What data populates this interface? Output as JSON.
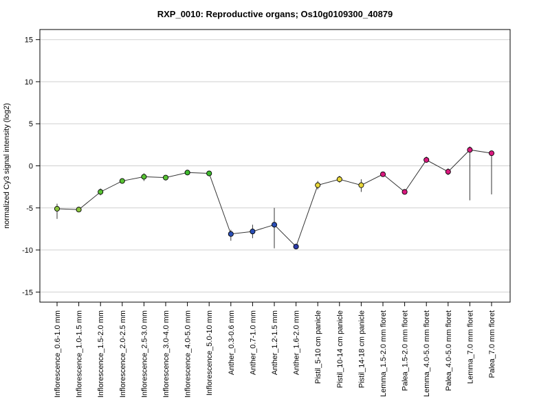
{
  "chart_data": {
    "type": "line",
    "title": "RXP_0010: Reproductive organs; Os10g0109300_40879",
    "ylabel": "normalized Cy3 signal intensity (log2)",
    "xlabel": "",
    "ylim": [
      -16.2,
      16.2
    ],
    "yticks": [
      -15,
      -10,
      -5,
      0,
      5,
      10,
      15
    ],
    "grid": true,
    "categories": [
      "Inflorescence_0.6-1.0 mm",
      "Inflorescence_1.0-1.5 mm",
      "Inflorescence_1.5-2.0 mm",
      "Inflorescence_2.0-2.5 mm",
      "Inflorescence_2.5-3.0 mm",
      "Inflorescence_3.0-4.0 mm",
      "Inflorescence_4.0-5.0 mm",
      "Inflorescence_5.0-10 mm",
      "Anther_0.3-0.6 mm",
      "Anther_0.7-1.0 mm",
      "Anther_1.2-1.5 mm",
      "Anther_1.6-2.0 mm",
      "Pistil_5-10 cm panicle",
      "Pistil_10-14 cm panicle",
      "Pistil_14-18 cm panicle",
      "Lemma_1.5-2.0 mm floret",
      "Palea_1.5-2.0 mm floret",
      "Lemma_4.0-5.0 mm floret",
      "Palea_4.0-5.0 mm floret",
      "Lemma_7.0 mm floret",
      "Palea_7.0 mm floret"
    ],
    "series": [
      {
        "values": [
          -5.1,
          -5.2,
          -3.1,
          -1.8,
          -1.3,
          -1.4,
          -0.8,
          -0.9,
          -8.1,
          -7.8,
          -7.0,
          -9.6,
          -2.3,
          -1.6,
          -2.3,
          -1.0,
          -3.1,
          0.7,
          -0.7,
          1.9,
          1.5
        ],
        "error_low": [
          -6.3,
          -5.3,
          -3.5,
          -2.0,
          -1.8,
          -1.6,
          -0.9,
          -1.1,
          -8.9,
          -8.6,
          -9.8,
          -9.7,
          -2.8,
          -2.0,
          -3.1,
          -1.1,
          -3.3,
          0.4,
          -1.1,
          -4.1,
          -3.4
        ],
        "error_high": [
          -4.5,
          -5.1,
          -2.7,
          -1.6,
          -0.9,
          -1.3,
          -0.7,
          -0.6,
          -7.6,
          -7.0,
          -5.0,
          -9.5,
          -1.8,
          -1.2,
          -1.6,
          -0.9,
          -2.9,
          1.1,
          -0.3,
          2.3,
          1.8
        ],
        "colors": [
          "#8cc63f",
          "#8cc63f",
          "#58c234",
          "#58c234",
          "#58c234",
          "#58c234",
          "#3fba2e",
          "#3fba2e",
          "#2b4fb6",
          "#2b4fb6",
          "#2b4fb6",
          "#2b3ba8",
          "#e8d63a",
          "#e8d63a",
          "#e8d63a",
          "#d8197e",
          "#d8197e",
          "#d8197e",
          "#d8197e",
          "#d8197e",
          "#d8197e"
        ]
      }
    ]
  }
}
